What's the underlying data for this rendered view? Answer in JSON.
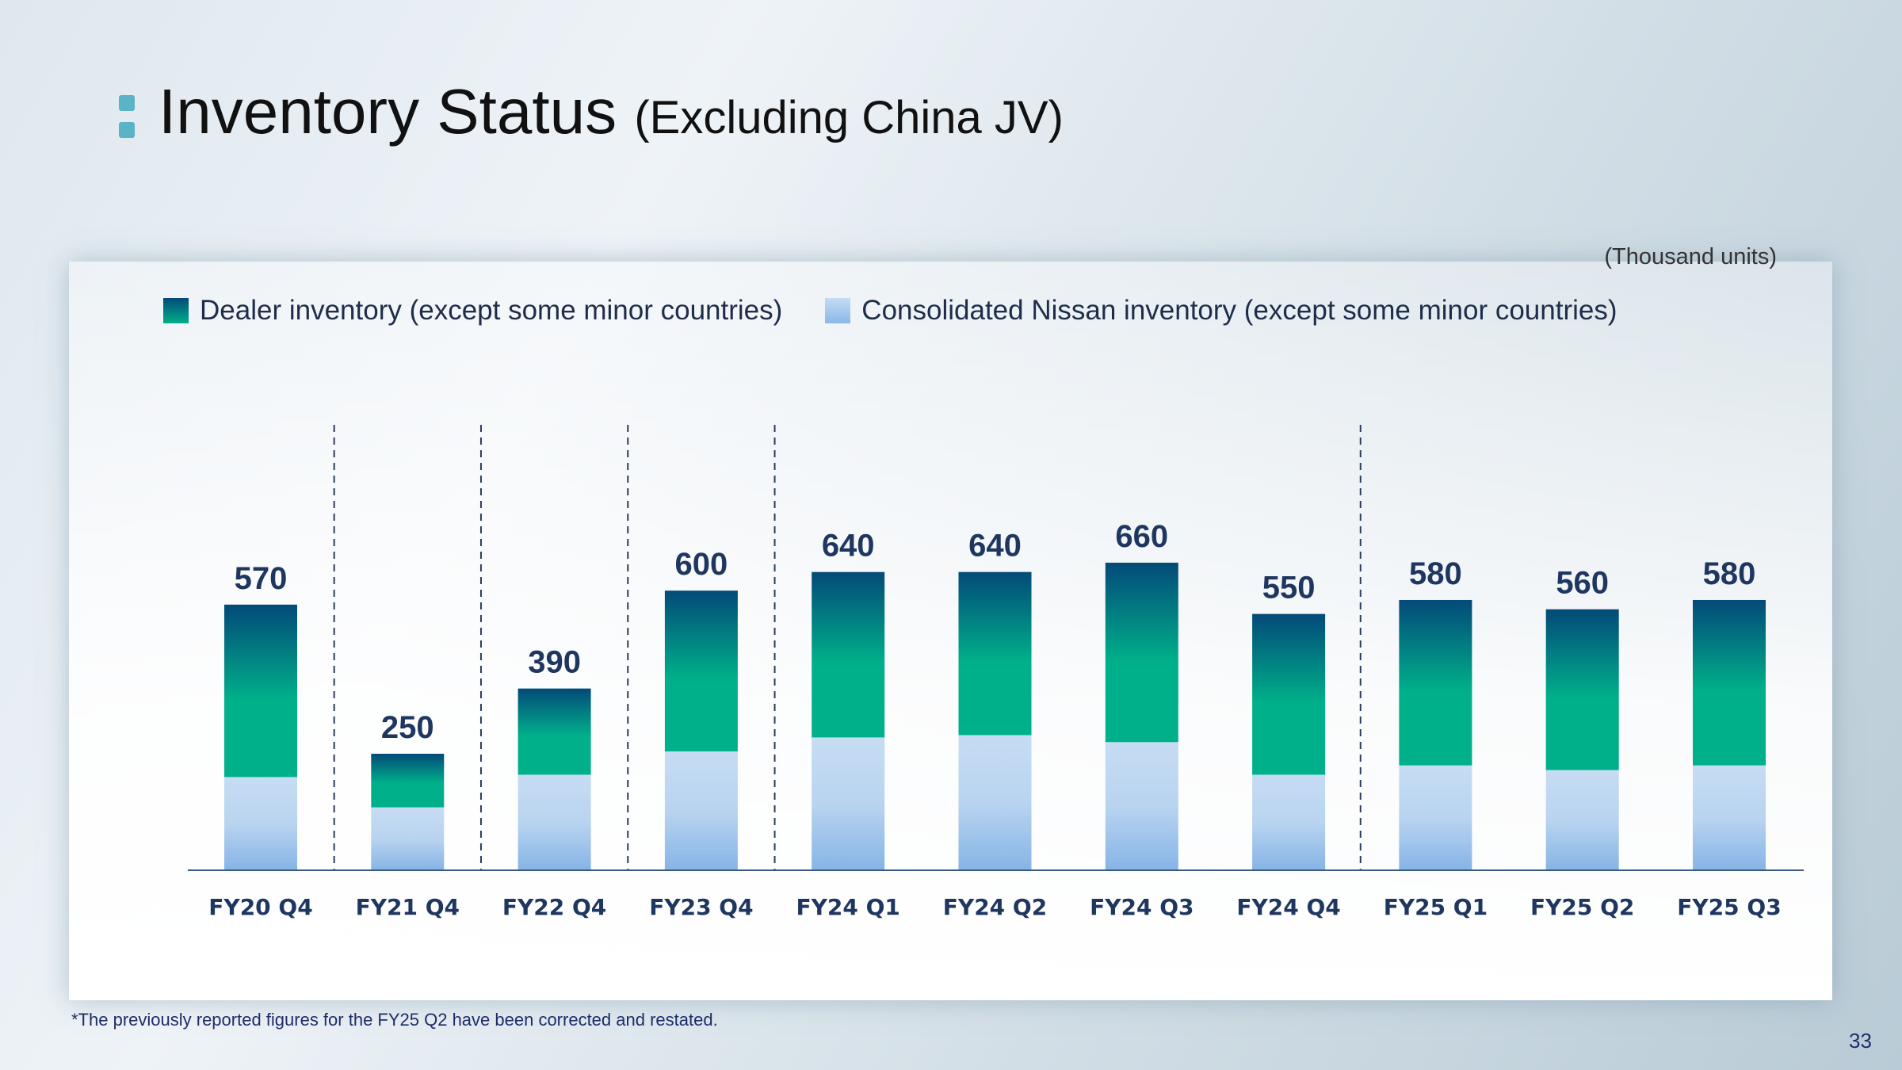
{
  "title": {
    "main": "Inventory Status",
    "sub": "(Excluding China JV)"
  },
  "units": "(Thousand units)",
  "footnote": "*The previously reported figures for the FY25 Q2 have been corrected and restated.",
  "page_number": "33",
  "colors": {
    "dealer_top": "#034a78",
    "dealer_bottom": "#00b08a",
    "consolidated_top": "#c6dcf3",
    "consolidated_bottom": "#8ab8e8"
  },
  "chart_data": {
    "type": "bar",
    "stacked": true,
    "categories": [
      "FY20 Q4",
      "FY21 Q4",
      "FY22 Q4",
      "FY23 Q4",
      "FY24 Q1",
      "FY24 Q2",
      "FY24 Q3",
      "FY24 Q4",
      "FY25 Q1",
      "FY25 Q2",
      "FY25 Q3"
    ],
    "totals": [
      "570",
      "250",
      "390",
      "600",
      "640",
      "640",
      "660",
      "550",
      "580",
      "560",
      "580"
    ],
    "series": [
      {
        "name": "Consolidated Nissan inventory (except some minor countries)",
        "values": [
          200,
          135,
          205,
          255,
          285,
          290,
          275,
          205,
          225,
          215,
          225
        ]
      },
      {
        "name": "Dealer inventory (except some minor countries)",
        "values": [
          370,
          115,
          185,
          345,
          355,
          350,
          385,
          345,
          355,
          345,
          355
        ]
      }
    ],
    "separators_after_index": [
      0,
      1,
      2,
      3,
      7
    ],
    "ylim": [
      0,
      700
    ],
    "legend": "top-left"
  }
}
